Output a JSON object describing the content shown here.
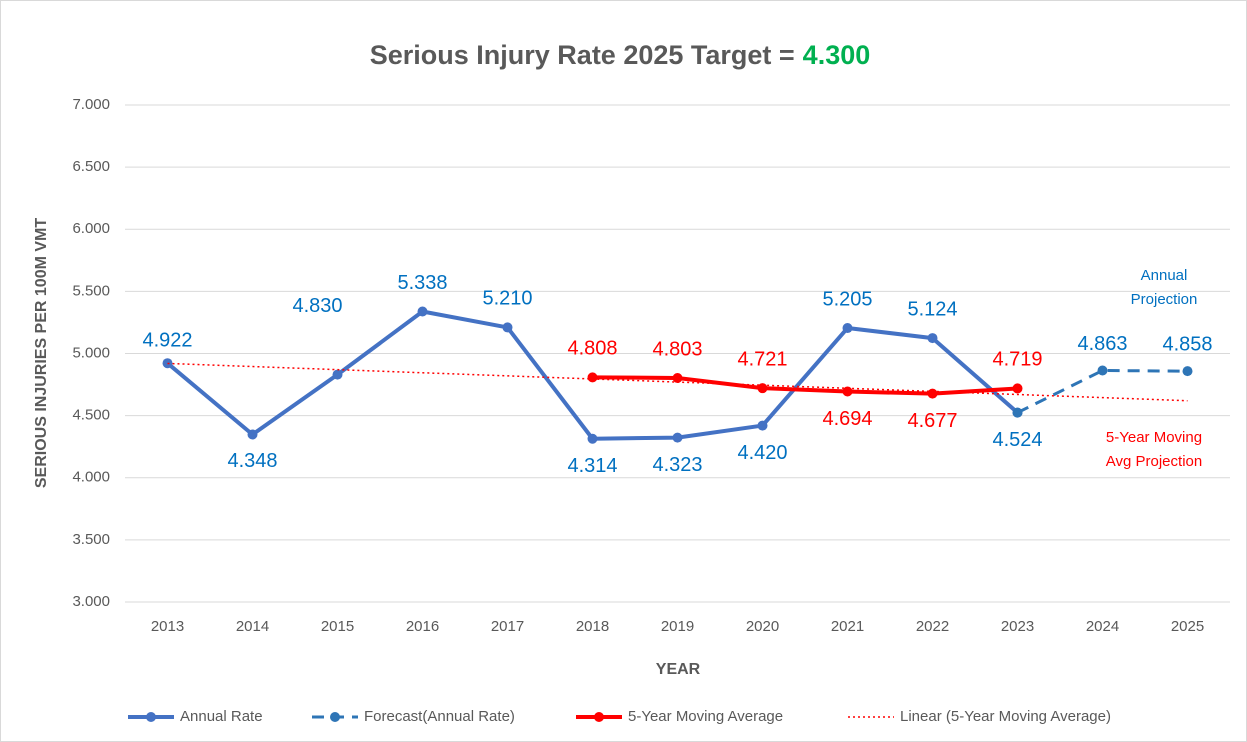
{
  "chart_data": {
    "type": "line",
    "title": "Serious Injury Rate 2025 Target =",
    "target": {
      "value": 4.3,
      "label": "4.300"
    },
    "x_label": "YEAR",
    "y_label": "SERIOUS INJURIES PER 100M VMT",
    "categories": [
      "2013",
      "2014",
      "2015",
      "2016",
      "2017",
      "2018",
      "2019",
      "2020",
      "2021",
      "2022",
      "2023",
      "2024",
      "2025"
    ],
    "ylim": [
      3,
      7
    ],
    "yticks": [
      {
        "value": 3,
        "label": "3.000"
      },
      {
        "value": 3.5,
        "label": "3.500"
      },
      {
        "value": 4,
        "label": "4.000"
      },
      {
        "value": 4.5,
        "label": "4.500"
      },
      {
        "value": 5,
        "label": "5.000"
      },
      {
        "value": 5.5,
        "label": "5.500"
      },
      {
        "value": 6,
        "label": "6.000"
      },
      {
        "value": 6.5,
        "label": "6.500"
      },
      {
        "value": 7,
        "label": "7.000"
      }
    ],
    "grid": true,
    "series": [
      {
        "name": "Annual Rate",
        "color": "#4472c4",
        "style": "solid",
        "markers": true,
        "values": [
          4.922,
          4.348,
          4.83,
          5.338,
          5.21,
          4.314,
          4.323,
          4.42,
          5.205,
          5.124,
          4.524,
          null,
          null
        ],
        "value_labels": [
          "4.922",
          "4.348",
          "4.830",
          "5.338",
          "5.210",
          "4.314",
          "4.323",
          "4.420",
          "5.205",
          "5.124",
          "4.524",
          null,
          null
        ]
      },
      {
        "name": "Forecast(Annual Rate)",
        "color": "#2e75b6",
        "style": "dashed",
        "markers": true,
        "values": [
          null,
          null,
          null,
          null,
          null,
          null,
          null,
          null,
          null,
          null,
          4.524,
          4.863,
          4.858
        ],
        "value_labels": [
          null,
          null,
          null,
          null,
          null,
          null,
          null,
          null,
          null,
          null,
          null,
          "4.863",
          "4.858"
        ]
      },
      {
        "name": "5-Year Moving Average",
        "color": "#ff0000",
        "style": "solid",
        "markers": true,
        "values": [
          null,
          null,
          null,
          null,
          null,
          4.808,
          4.803,
          4.721,
          4.694,
          4.677,
          4.719,
          null,
          null
        ],
        "value_labels": [
          null,
          null,
          null,
          null,
          null,
          "4.808",
          "4.803",
          "4.721",
          "4.694",
          "4.677",
          "4.719",
          null,
          null
        ]
      },
      {
        "name": "Linear (5-Year Moving Average)",
        "color": "#ff0000",
        "style": "dotted",
        "markers": false,
        "values": [
          4.92,
          4.895,
          4.87,
          4.845,
          4.82,
          4.795,
          4.77,
          4.745,
          4.72,
          4.695,
          4.67,
          4.645,
          4.62
        ]
      }
    ],
    "annotations": [
      {
        "lines": [
          "Annual",
          "Projection"
        ],
        "color": "#0070c0"
      },
      {
        "lines": [
          "5-Year Moving",
          "Avg Projection"
        ],
        "color": "#ff0000"
      }
    ]
  }
}
